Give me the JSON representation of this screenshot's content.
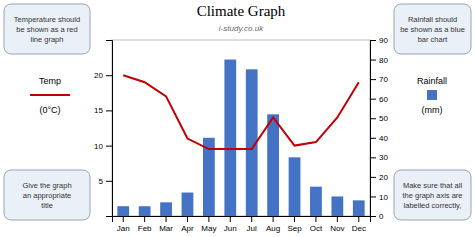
{
  "chart_data": {
    "type": "bar",
    "title": "Climate Graph",
    "subtitle": "i-study.co.uk",
    "categories": [
      "Jan",
      "Feb",
      "Mar",
      "Apr",
      "May",
      "Jun",
      "Jul",
      "Aug",
      "Sep",
      "Oct",
      "Nov",
      "Dec"
    ],
    "series": [
      {
        "name": "Rainfall",
        "type": "bar",
        "color": "#4472C4",
        "axis": "y2",
        "values": [
          5,
          5,
          7,
          12,
          40,
          80,
          75,
          52,
          30,
          15,
          10,
          8
        ]
      },
      {
        "name": "Temp",
        "type": "line",
        "color": "#C00000",
        "values": [
          20,
          19,
          17,
          11,
          9.5,
          9.5,
          9.5,
          14,
          10,
          10.5,
          14,
          19
        ]
      }
    ],
    "ylabel": "(0°C)",
    "y2label": "(mm)",
    "ylim": [
      0,
      25
    ],
    "yticks": [
      5,
      10,
      15,
      20
    ],
    "y2lim": [
      0,
      90
    ],
    "y2ticks": [
      0,
      10,
      20,
      30,
      40,
      50,
      60,
      70,
      80,
      90
    ],
    "grid": false,
    "annotations": [
      "Temperature should\nbe shown as a red\nline graph",
      "Give the graph\nan appropriate\ntitle",
      "Rainfall should\nbe shown as a blue\nbar chart",
      "Make sure that all\nthe graph axis are\nlabelled correctly,"
    ]
  }
}
